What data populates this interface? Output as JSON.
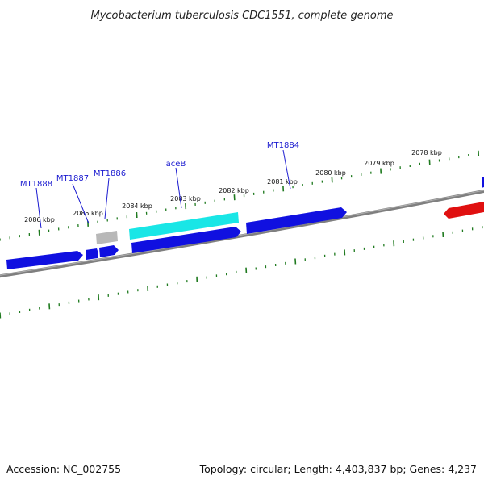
{
  "title": "Mycobacterium tuberculosis CDC1551, complete genome",
  "footer": {
    "accession": "Accession: NC_002755",
    "summary": "Topology: circular; Length: 4,403,837 bp; Genes: 4,237"
  },
  "kbp_labels": [
    "2086 kbp",
    "2085 kbp",
    "2084 kbp",
    "2083 kbp",
    "2082 kbp",
    "2081 kbp",
    "2080 kbp",
    "2079 kbp",
    "2078 kbp"
  ],
  "gene_labels": [
    "MT1888",
    "MT1887",
    "MT1886",
    "aceB",
    "MT1884"
  ],
  "colors": {
    "backbone": "#7f7f7f",
    "tick": "#1f7a1f",
    "gene_blue": "#1010e0",
    "gene_cyan": "#19e6e6",
    "gene_gray": "#b8b8b8",
    "gene_red": "#e01010",
    "label_blue": "#1a1ad0"
  }
}
